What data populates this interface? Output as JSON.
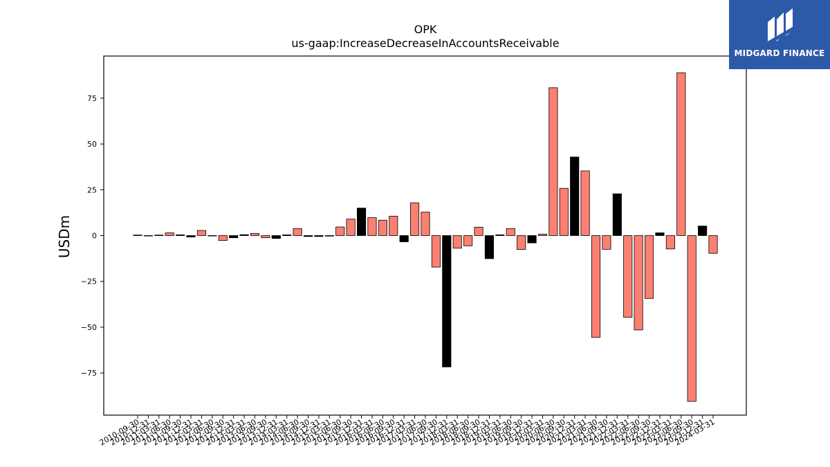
{
  "logo": {
    "text": "MIDGARD FINANCE"
  },
  "chart_data": {
    "type": "bar",
    "title": "OPK",
    "subtitle": "us-gaap:IncreaseDecreaseInAccountsReceivable",
    "ylabel": "USDm",
    "xlabel": "",
    "ylim": [
      -98,
      98
    ],
    "yticks": [
      -75,
      -50,
      -25,
      0,
      25,
      50,
      75
    ],
    "grid": false,
    "colors": {
      "positive_increase": "#fa8072",
      "negative_decrease": "#000000"
    },
    "categories": [
      "2010-09-30",
      "2010-12-31",
      "2011-03-31",
      "2011-06-30",
      "2011-09-30",
      "2011-12-31",
      "2012-03-31",
      "2012-06-30",
      "2012-09-30",
      "2012-12-31",
      "2013-03-31",
      "2013-06-30",
      "2013-09-30",
      "2013-12-31",
      "2014-03-31",
      "2014-06-30",
      "2014-09-30",
      "2014-12-31",
      "2015-03-31",
      "2015-06-30",
      "2015-09-30",
      "2015-12-31",
      "2016-03-31",
      "2016-06-30",
      "2016-09-30",
      "2016-12-31",
      "2017-03-31",
      "2017-06-30",
      "2017-09-30",
      "2017-12-31",
      "2018-03-31",
      "2018-06-30",
      "2018-09-30",
      "2018-12-31",
      "2019-03-31",
      "2019-06-30",
      "2019-09-30",
      "2019-12-31",
      "2020-03-31",
      "2020-06-30",
      "2020-09-30",
      "2020-12-31",
      "2021-03-31",
      "2021-06-30",
      "2021-09-30",
      "2021-12-31",
      "2022-03-31",
      "2022-06-30",
      "2022-09-30",
      "2022-12-31",
      "2023-03-31",
      "2023-06-30",
      "2023-09-30",
      "2023-12-31",
      "2024-03-31"
    ],
    "values": [
      0.3,
      -0.2,
      0.3,
      1.5,
      0.4,
      -0.8,
      2.8,
      -0.2,
      -2.7,
      -1.2,
      0.5,
      1.2,
      -1.2,
      -1.6,
      0.4,
      3.8,
      -0.5,
      -0.5,
      -0.3,
      4.7,
      9.0,
      15.0,
      9.8,
      8.4,
      10.6,
      -3.4,
      17.9,
      12.8,
      -17.2,
      -71.7,
      -6.9,
      -5.6,
      4.6,
      -12.6,
      0.4,
      3.8,
      -7.6,
      -4.0,
      0.8,
      80.7,
      25.8,
      42.9,
      35.3,
      -55.6,
      -7.5,
      22.8,
      -44.6,
      -51.5,
      -34.3,
      1.5,
      -7.3,
      88.9,
      -90.5,
      5.2,
      -9.7
    ],
    "bar_color": [
      "black",
      "salmon",
      "black",
      "salmon",
      "black",
      "black",
      "salmon",
      "salmon",
      "salmon",
      "black",
      "black",
      "salmon",
      "salmon",
      "black",
      "black",
      "salmon",
      "black",
      "black",
      "salmon",
      "salmon",
      "salmon",
      "black",
      "salmon",
      "salmon",
      "salmon",
      "black",
      "salmon",
      "salmon",
      "salmon",
      "black",
      "salmon",
      "salmon",
      "salmon",
      "black",
      "black",
      "salmon",
      "salmon",
      "black",
      "salmon",
      "salmon",
      "salmon",
      "black",
      "salmon",
      "salmon",
      "salmon",
      "black",
      "salmon",
      "salmon",
      "salmon",
      "black",
      "salmon",
      "salmon",
      "salmon",
      "black",
      "salmon"
    ]
  }
}
